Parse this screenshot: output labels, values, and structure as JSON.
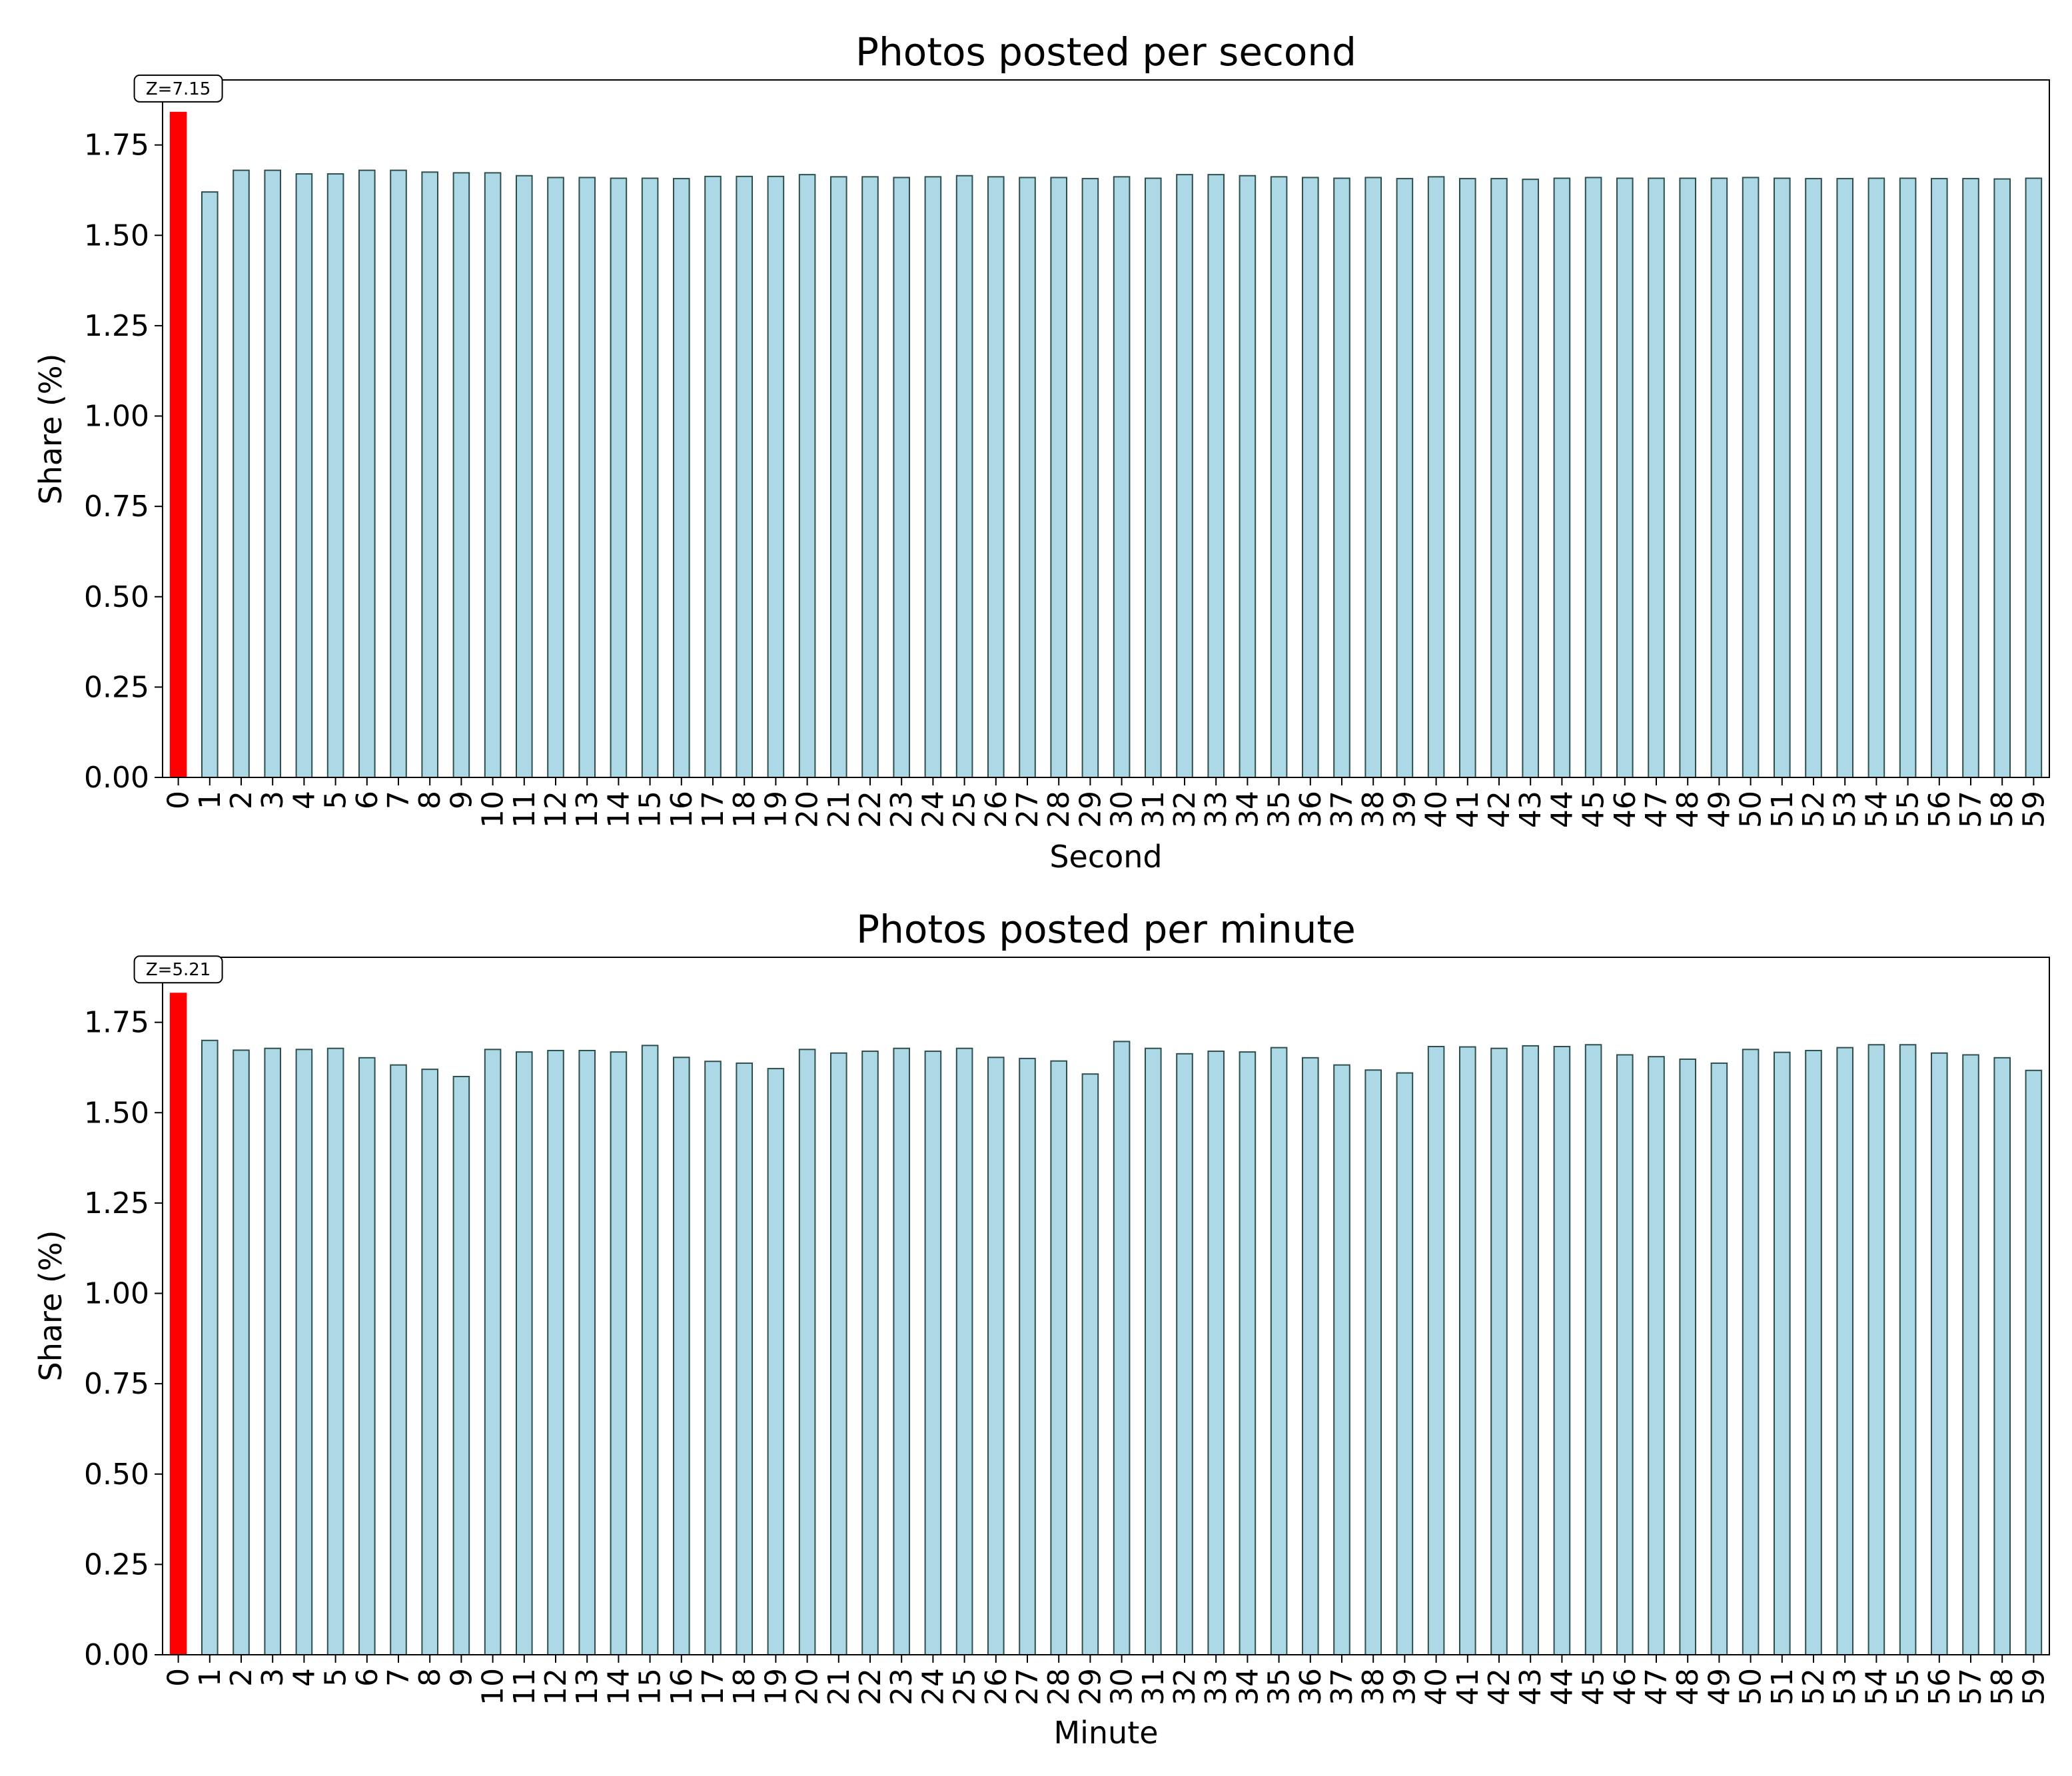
{
  "chart_data": [
    {
      "type": "bar",
      "title": "Photos posted per second",
      "xlabel": "Second",
      "ylabel": "Share (%)",
      "ylim": [
        0,
        1.93
      ],
      "yticks": [
        "0.00",
        "0.25",
        "0.50",
        "0.75",
        "1.00",
        "1.25",
        "1.50",
        "1.75"
      ],
      "categories": [
        "0",
        "1",
        "2",
        "3",
        "4",
        "5",
        "6",
        "7",
        "8",
        "9",
        "10",
        "11",
        "12",
        "13",
        "14",
        "15",
        "16",
        "17",
        "18",
        "19",
        "20",
        "21",
        "22",
        "23",
        "24",
        "25",
        "26",
        "27",
        "28",
        "29",
        "30",
        "31",
        "32",
        "33",
        "34",
        "35",
        "36",
        "37",
        "38",
        "39",
        "40",
        "41",
        "42",
        "43",
        "44",
        "45",
        "46",
        "47",
        "48",
        "49",
        "50",
        "51",
        "52",
        "53",
        "54",
        "55",
        "56",
        "57",
        "58",
        "59"
      ],
      "values": [
        1.84,
        1.62,
        1.68,
        1.68,
        1.67,
        1.67,
        1.68,
        1.68,
        1.675,
        1.673,
        1.673,
        1.665,
        1.66,
        1.66,
        1.658,
        1.658,
        1.657,
        1.663,
        1.663,
        1.663,
        1.668,
        1.662,
        1.662,
        1.66,
        1.662,
        1.665,
        1.662,
        1.66,
        1.66,
        1.657,
        1.662,
        1.658,
        1.668,
        1.668,
        1.665,
        1.662,
        1.66,
        1.658,
        1.66,
        1.657,
        1.662,
        1.657,
        1.657,
        1.655,
        1.658,
        1.66,
        1.658,
        1.658,
        1.658,
        1.658,
        1.66,
        1.658,
        1.657,
        1.657,
        1.658,
        1.658,
        1.657,
        1.657,
        1.656,
        1.658
      ],
      "highlight_index": 0,
      "annotation": "Z=7.15",
      "colors": {
        "bar": "#add8e6",
        "highlight": "#ff0000",
        "edge": "#2f4f4f"
      }
    },
    {
      "type": "bar",
      "title": "Photos posted per minute",
      "xlabel": "Minute",
      "ylabel": "Share (%)",
      "ylim": [
        0,
        1.93
      ],
      "yticks": [
        "0.00",
        "0.25",
        "0.50",
        "0.75",
        "1.00",
        "1.25",
        "1.50",
        "1.75"
      ],
      "categories": [
        "0",
        "1",
        "2",
        "3",
        "4",
        "5",
        "6",
        "7",
        "8",
        "9",
        "10",
        "11",
        "12",
        "13",
        "14",
        "15",
        "16",
        "17",
        "18",
        "19",
        "20",
        "21",
        "22",
        "23",
        "24",
        "25",
        "26",
        "27",
        "28",
        "29",
        "30",
        "31",
        "32",
        "33",
        "34",
        "35",
        "36",
        "37",
        "38",
        "39",
        "40",
        "41",
        "42",
        "43",
        "44",
        "45",
        "46",
        "47",
        "48",
        "49",
        "50",
        "51",
        "52",
        "53",
        "54",
        "55",
        "56",
        "57",
        "58",
        "59"
      ],
      "values": [
        1.83,
        1.7,
        1.673,
        1.678,
        1.675,
        1.678,
        1.652,
        1.632,
        1.62,
        1.6,
        1.675,
        1.668,
        1.672,
        1.672,
        1.668,
        1.686,
        1.653,
        1.642,
        1.637,
        1.622,
        1.675,
        1.665,
        1.67,
        1.678,
        1.67,
        1.678,
        1.653,
        1.65,
        1.643,
        1.607,
        1.697,
        1.678,
        1.663,
        1.67,
        1.668,
        1.68,
        1.652,
        1.632,
        1.618,
        1.61,
        1.683,
        1.682,
        1.678,
        1.685,
        1.683,
        1.688,
        1.66,
        1.655,
        1.648,
        1.637,
        1.675,
        1.667,
        1.672,
        1.68,
        1.688,
        1.688,
        1.665,
        1.66,
        1.652,
        1.617
      ],
      "highlight_index": 0,
      "annotation": "Z=5.21",
      "colors": {
        "bar": "#add8e6",
        "highlight": "#ff0000",
        "edge": "#2f4f4f"
      }
    }
  ]
}
